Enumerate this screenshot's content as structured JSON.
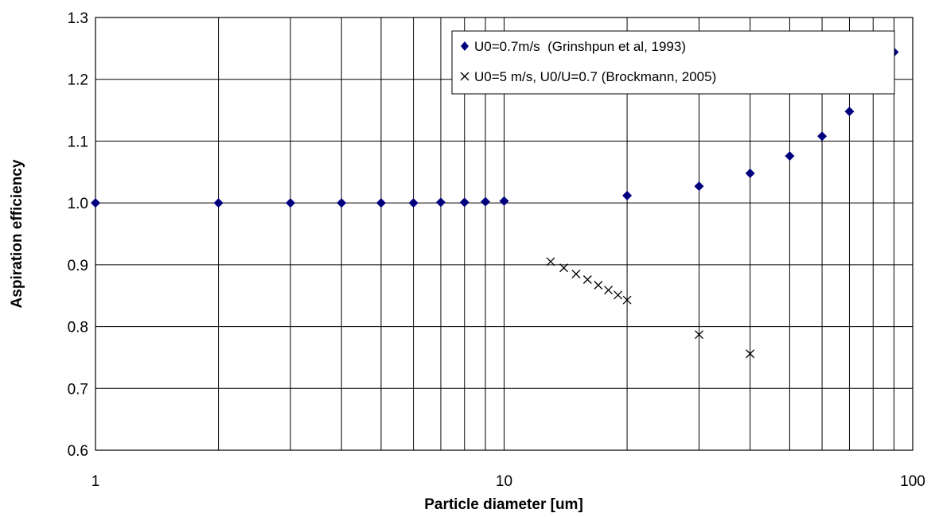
{
  "chart_data": {
    "type": "scatter",
    "xscale": "log",
    "xlim": [
      1,
      100
    ],
    "ylim": [
      0.6,
      1.3
    ],
    "xticks": [
      "1",
      "10",
      "100"
    ],
    "yticks": [
      "0.6",
      "0.7",
      "0.8",
      "0.9",
      "1.0",
      "1.1",
      "1.2",
      "1.3"
    ],
    "grid": true,
    "legend_position": "top-right",
    "xlabel": "Particle diameter [um]",
    "ylabel": "Aspiration efficiency",
    "series": [
      {
        "name": "U0=0.7m/s  (Grinshpun et al, 1993)",
        "marker": "diamond",
        "color": "#00007f",
        "x": [
          1,
          2,
          3,
          4,
          5,
          6,
          7,
          8,
          9,
          10,
          20,
          30,
          40,
          50,
          60,
          70,
          80,
          90
        ],
        "y": [
          1.0,
          1.0,
          1.0,
          1.0,
          1.0,
          1.0,
          1.001,
          1.001,
          1.002,
          1.003,
          1.012,
          1.027,
          1.048,
          1.076,
          1.108,
          1.148,
          1.193,
          1.244
        ]
      },
      {
        "name": "U0=5 m/s, U0/U=0.7 (Brockmann, 2005)",
        "marker": "x",
        "color": "#000000",
        "x": [
          13,
          14,
          15,
          16,
          17,
          18,
          19,
          20,
          30,
          40
        ],
        "y": [
          0.905,
          0.895,
          0.885,
          0.876,
          0.867,
          0.859,
          0.851,
          0.843,
          0.787,
          0.756
        ]
      }
    ]
  }
}
